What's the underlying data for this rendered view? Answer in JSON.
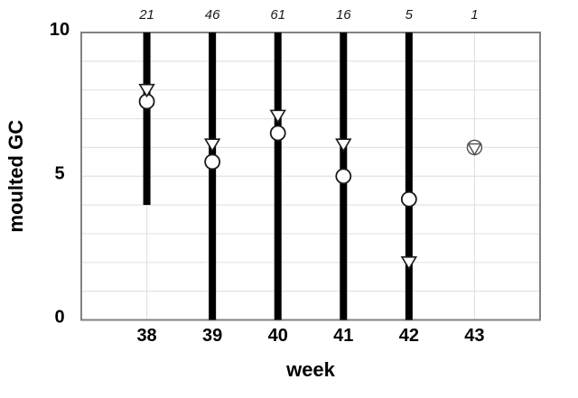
{
  "chart_data": {
    "type": "bar",
    "subtype": "vertical-range-bars-with-circle-and-triangle-markers",
    "title": "",
    "xlabel": "week",
    "ylabel": "moulted GC",
    "xlim": [
      37,
      44
    ],
    "ylim": [
      0,
      10
    ],
    "grid": true,
    "legend": false,
    "x_tick_values": [
      38,
      39,
      40,
      41,
      42,
      43
    ],
    "x_tick_labels": [
      "38",
      "39",
      "40",
      "41",
      "42",
      "43"
    ],
    "y_tick_values": [
      0,
      5,
      10
    ],
    "y_tick_labels": [
      "0",
      "5",
      "10"
    ],
    "y_gridline_values": [
      1,
      2,
      3,
      4,
      5,
      6,
      7,
      8,
      9
    ],
    "points": [
      {
        "week": 38,
        "n": "21",
        "range_low": 4,
        "range_high": 10,
        "circle": 7.6,
        "triangle": 8.0
      },
      {
        "week": 39,
        "n": "46",
        "range_low": 0,
        "range_high": 10,
        "circle": 5.5,
        "triangle": 6.1
      },
      {
        "week": 40,
        "n": "61",
        "range_low": 0,
        "range_high": 10,
        "circle": 6.5,
        "triangle": 7.1
      },
      {
        "week": 41,
        "n": "16",
        "range_low": 0,
        "range_high": 10,
        "circle": 5.0,
        "triangle": 6.1
      },
      {
        "week": 42,
        "n": "5",
        "range_low": 0,
        "range_high": 10,
        "circle": 4.2,
        "triangle": 2.0
      },
      {
        "week": 43,
        "n": "1",
        "range_low": null,
        "range_high": null,
        "circle": 6.0,
        "triangle": 6.0,
        "combined_marker": true
      }
    ],
    "colors": {
      "bar": "#000000",
      "marker_fill": "#ffffff",
      "marker_stroke": "#1a1a1a",
      "combined_marker_stroke": "#4d4d4d",
      "frame": "#828282",
      "gridline": "#e3e3e3",
      "text": "#000000",
      "background": "#ffffff"
    }
  }
}
